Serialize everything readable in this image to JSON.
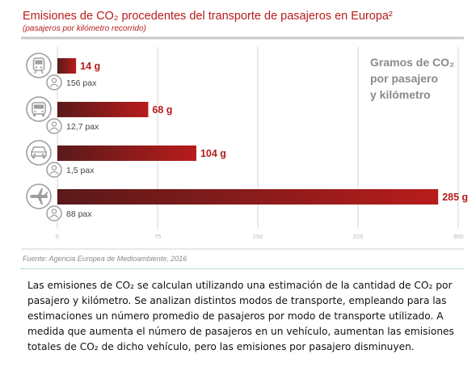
{
  "chart_data": {
    "type": "bar",
    "title": "Emisiones de CO₂ procedentes del transporte de pasajeros en Europa²",
    "subtitle": "(pasajeros por kilómetro recorrido)",
    "legend_lines": [
      "Gramos de CO₂",
      "por pasajero",
      "y kilómetro"
    ],
    "categories": [
      "tren",
      "autobús",
      "coche",
      "avión"
    ],
    "values": [
      14,
      68,
      104,
      285
    ],
    "value_labels": [
      "14 g",
      "68 g",
      "104 g",
      "285 g"
    ],
    "passengers": [
      "156 pax",
      "12,7 pax",
      "1,5 pax",
      "88 pax"
    ],
    "icons": [
      "train-icon",
      "bus-icon",
      "car-icon",
      "airplane-icon"
    ],
    "x_ticks": [
      "0",
      "75",
      "150",
      "225",
      "300"
    ],
    "xlim": [
      0,
      300
    ],
    "orientation": "horizontal",
    "grid": true,
    "bar_color": "#b71c1c",
    "bar_color_start": "#5a1a1a",
    "icon_color": "#9e9e9e",
    "source": "Fuente: Agencia Europea de Medioambiente, 2016"
  },
  "description": "Las emisiones de CO₂ se calculan utilizando una estimación de la cantidad de CO₂ por pasajero y kilómetro. Se analizan distintos modos de transporte, empleando para las estimaciones un número promedio de pasajeros por modo de transporte utilizado. A medida que aumenta el número de pasajeros en un vehículo, aumentan las emisiones totales de CO₂ de dicho vehículo, pero las emisiones por pasajero disminuyen."
}
